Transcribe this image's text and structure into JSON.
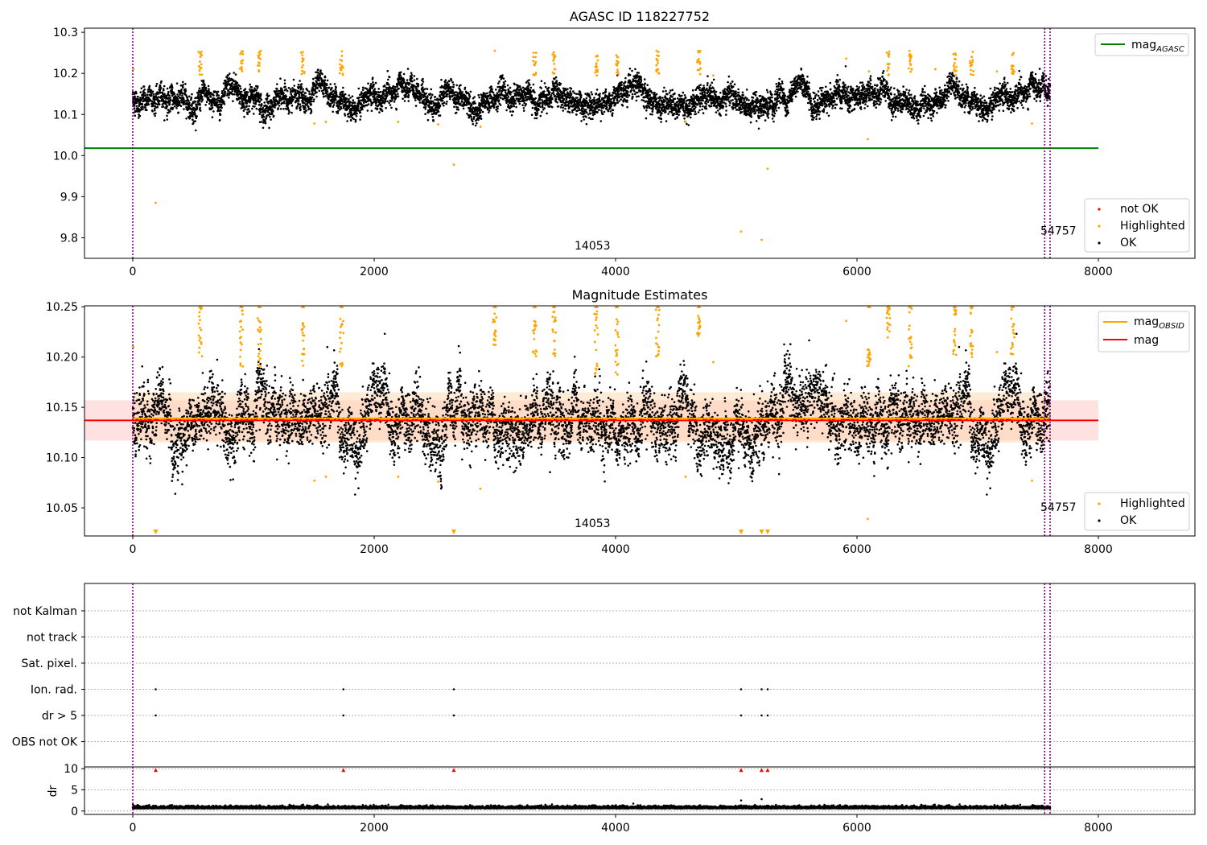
{
  "chart_data": [
    {
      "type": "scatter",
      "title": "AGASC ID 118227752",
      "xlim": [
        -400,
        8800
      ],
      "ylim": [
        9.75,
        10.31
      ],
      "xticks": [
        "0",
        "2000",
        "4000",
        "6000",
        "8000"
      ],
      "yticks": [
        "9.8",
        "9.9",
        "10.0",
        "10.1",
        "10.2",
        "10.3"
      ],
      "lines": [
        {
          "name": "mag",
          "subscript": "AGASC",
          "color": "#008000",
          "y": 10.018,
          "x": [
            -400,
            8000
          ]
        }
      ],
      "vlines": [
        0,
        7555,
        7600
      ],
      "legend_top": {
        "entry": "mag",
        "subscript": "AGASC"
      },
      "legend_bottom": [
        "not OK",
        "Highlighted",
        "OK"
      ],
      "annotations": [
        {
          "text": "14053",
          "x": 3660,
          "y": 9.772
        },
        {
          "text": "54757",
          "x": 7520,
          "y": 9.808
        }
      ],
      "ok_points": {
        "color": "#000000",
        "n": 7600,
        "x_range": [
          0,
          7600
        ],
        "center": 10.137,
        "spread": 0.022
      },
      "highlighted": [
        {
          "x": 5,
          "y": 10.21
        },
        {
          "x": 190,
          "y": 9.885
        },
        {
          "x": 560,
          "y": 10.24
        },
        {
          "x": 900,
          "y": 10.23
        },
        {
          "x": 1050,
          "y": 10.225
        },
        {
          "x": 1410,
          "y": 10.22
        },
        {
          "x": 1505,
          "y": 10.078
        },
        {
          "x": 1600,
          "y": 10.082
        },
        {
          "x": 1730,
          "y": 10.215
        },
        {
          "x": 2200,
          "y": 10.082
        },
        {
          "x": 2530,
          "y": 10.076
        },
        {
          "x": 2660,
          "y": 9.978
        },
        {
          "x": 2880,
          "y": 10.07
        },
        {
          "x": 3000,
          "y": 10.255
        },
        {
          "x": 3330,
          "y": 10.22
        },
        {
          "x": 3490,
          "y": 10.235
        },
        {
          "x": 3840,
          "y": 10.22
        },
        {
          "x": 4010,
          "y": 10.23
        },
        {
          "x": 4350,
          "y": 10.225
        },
        {
          "x": 4580,
          "y": 10.082
        },
        {
          "x": 4690,
          "y": 10.235
        },
        {
          "x": 4810,
          "y": 10.195
        },
        {
          "x": 5040,
          "y": 9.815
        },
        {
          "x": 5210,
          "y": 9.795
        },
        {
          "x": 5260,
          "y": 9.968
        },
        {
          "x": 5910,
          "y": 10.236
        },
        {
          "x": 6090,
          "y": 10.04
        },
        {
          "x": 6100,
          "y": 10.205
        },
        {
          "x": 6260,
          "y": 10.245
        },
        {
          "x": 6440,
          "y": 10.23
        },
        {
          "x": 6650,
          "y": 10.21
        },
        {
          "x": 6810,
          "y": 10.235
        },
        {
          "x": 6950,
          "y": 10.24
        },
        {
          "x": 7160,
          "y": 10.205
        },
        {
          "x": 7290,
          "y": 10.245
        },
        {
          "x": 7450,
          "y": 10.078
        }
      ]
    },
    {
      "type": "scatter",
      "title": "Magnitude Estimates",
      "xlim": [
        -400,
        8800
      ],
      "ylim": [
        10.022,
        10.251
      ],
      "xticks": [
        "0",
        "2000",
        "4000",
        "6000",
        "8000"
      ],
      "yticks": [
        "10.05",
        "10.10",
        "10.15",
        "10.20",
        "10.25"
      ],
      "lines": [
        {
          "name": "mag",
          "subscript": "OBSID",
          "color": "#FFA500",
          "y": 10.139,
          "x": [
            0,
            7600
          ]
        },
        {
          "name": "mag",
          "color": "#FF0000",
          "y": 10.137,
          "x": [
            -400,
            8000
          ]
        }
      ],
      "bands": [
        {
          "color": "#FFC8C8",
          "y": [
            10.117,
            10.157
          ],
          "x": [
            -400,
            8000
          ]
        },
        {
          "color": "#FFD9B3",
          "y": [
            10.115,
            10.165
          ],
          "x": [
            0,
            7600
          ]
        }
      ],
      "vlines": [
        0,
        7555,
        7600
      ],
      "legend_top": [
        {
          "entry": "mag",
          "subscript": "OBSID"
        },
        {
          "entry": "mag"
        }
      ],
      "legend_bottom": [
        "Highlighted",
        "OK"
      ],
      "annotations": [
        {
          "text": "14053",
          "x": 3660,
          "y": 10.031
        },
        {
          "text": "54757",
          "x": 7520,
          "y": 10.047
        }
      ],
      "ok_points": {
        "color": "#000000",
        "n": 7600,
        "x_range": [
          0,
          7600
        ],
        "center": 10.137,
        "spread": 0.022
      },
      "highlighted_columns": [
        {
          "x": 560,
          "y": [
            10.2,
            10.25
          ]
        },
        {
          "x": 900,
          "y": [
            10.19,
            10.25
          ]
        },
        {
          "x": 1050,
          "y": [
            10.19,
            10.245
          ]
        },
        {
          "x": 1410,
          "y": [
            10.19,
            10.24
          ]
        },
        {
          "x": 1730,
          "y": [
            10.19,
            10.24
          ]
        },
        {
          "x": 3000,
          "y": [
            10.21,
            10.25
          ]
        },
        {
          "x": 3330,
          "y": [
            10.2,
            10.237
          ]
        },
        {
          "x": 3490,
          "y": [
            10.2,
            10.25
          ]
        },
        {
          "x": 3840,
          "y": [
            10.18,
            10.25
          ]
        },
        {
          "x": 4010,
          "y": [
            10.18,
            10.25
          ]
        },
        {
          "x": 4350,
          "y": [
            10.2,
            10.25
          ]
        },
        {
          "x": 4690,
          "y": [
            10.22,
            10.242
          ]
        },
        {
          "x": 6260,
          "y": [
            10.21,
            10.25
          ]
        },
        {
          "x": 6440,
          "y": [
            10.19,
            10.25
          ]
        },
        {
          "x": 6810,
          "y": [
            10.2,
            10.25
          ]
        },
        {
          "x": 6950,
          "y": [
            10.2,
            10.25
          ]
        },
        {
          "x": 7290,
          "y": [
            10.2,
            10.25
          ]
        },
        {
          "x": 6100,
          "y": [
            10.19,
            10.21
          ]
        }
      ],
      "highlighted": [
        {
          "x": 5,
          "y": 10.21
        },
        {
          "x": 1505,
          "y": 10.077
        },
        {
          "x": 1600,
          "y": 10.081
        },
        {
          "x": 2200,
          "y": 10.081
        },
        {
          "x": 2530,
          "y": 10.076
        },
        {
          "x": 2880,
          "y": 10.069
        },
        {
          "x": 4580,
          "y": 10.081
        },
        {
          "x": 4810,
          "y": 10.195
        },
        {
          "x": 5910,
          "y": 10.236
        },
        {
          "x": 6090,
          "y": 10.039
        },
        {
          "x": 7160,
          "y": 10.205
        },
        {
          "x": 7450,
          "y": 10.077
        }
      ],
      "below_markers_x": [
        190,
        2660,
        5040,
        5210,
        5260
      ]
    },
    {
      "type": "scatter",
      "xlim": [
        -400,
        8800
      ],
      "xticks": [
        "0",
        "2000",
        "4000",
        "6000",
        "8000"
      ],
      "flag_rows": [
        "not Kalman",
        "not track",
        "Sat. pixel.",
        "Ion. rad.",
        "dr > 5",
        "OBS not OK"
      ],
      "flag_points": {
        "Ion. rad.": [
          190,
          1745,
          2660,
          5040,
          5210,
          5260
        ],
        "dr > 5": [
          190,
          1745,
          2660,
          5040,
          5210,
          5260
        ]
      },
      "vlines": [
        0,
        7555,
        7600
      ]
    },
    {
      "type": "scatter",
      "ylabel": "dr",
      "xlim": [
        -400,
        8800
      ],
      "ylim": [
        -0.8,
        10.4
      ],
      "xticks": [
        "0",
        "2000",
        "4000",
        "6000",
        "8000"
      ],
      "yticks": [
        "0",
        "5",
        "10"
      ],
      "ok_points": {
        "color": "#000000",
        "n": 7600,
        "x_range": [
          0,
          7600
        ],
        "center": 0.7,
        "spread": 0.3
      },
      "not_ok_markers": [
        {
          "x": 190,
          "y": 9.6
        },
        {
          "x": 1745,
          "y": 9.6
        },
        {
          "x": 2660,
          "y": 9.6
        },
        {
          "x": 5040,
          "y": 9.6
        },
        {
          "x": 5210,
          "y": 9.6
        },
        {
          "x": 5260,
          "y": 9.6
        }
      ],
      "outliers": [
        {
          "x": 5040,
          "y": 2.5
        },
        {
          "x": 5210,
          "y": 2.8
        }
      ],
      "vlines": [
        0,
        7555,
        7600
      ]
    }
  ]
}
